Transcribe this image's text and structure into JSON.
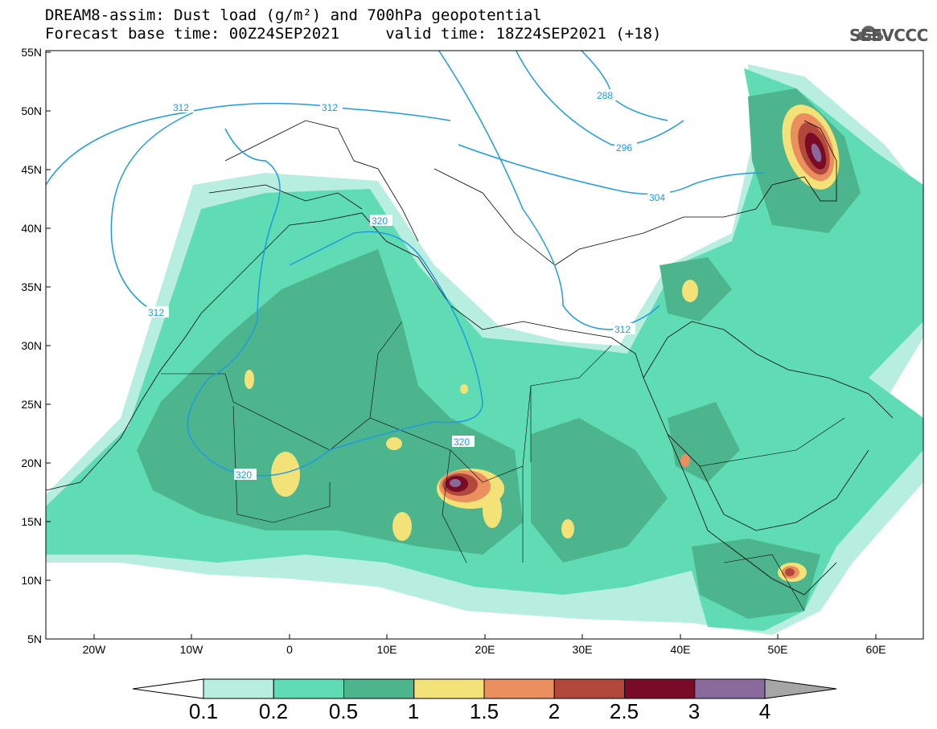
{
  "header": {
    "title_line1": "DREAM8-assim: Dust load (g/m²) and 700hPa geopotential",
    "title_line2": "Forecast base time: 00Z24SEP2021     valid time: 18Z24SEP2021 (+18)",
    "logo_text": "SEEVCCC"
  },
  "map": {
    "lat_labels": [
      "55N",
      "50N",
      "45N",
      "40N",
      "35N",
      "30N",
      "25N",
      "20N",
      "15N",
      "10N",
      "5N"
    ],
    "lon_labels": [
      "20W",
      "10W",
      "0",
      "10E",
      "20E",
      "30E",
      "40E",
      "50E",
      "60E"
    ],
    "contour_labels": [
      "312",
      "312",
      "312",
      "288",
      "296",
      "304",
      "320",
      "312",
      "320",
      "320"
    ]
  },
  "colorbar": {
    "colors": [
      "#b8eee0",
      "#5fdcb3",
      "#4db58e",
      "#f3e278",
      "#ec8f5f",
      "#b2483b",
      "#7a0b27",
      "#8a6a9c",
      "#a6a6a6"
    ],
    "labels": [
      "0.1",
      "0.2",
      "0.5",
      "1",
      "1.5",
      "2",
      "2.5",
      "3",
      "4"
    ]
  }
}
